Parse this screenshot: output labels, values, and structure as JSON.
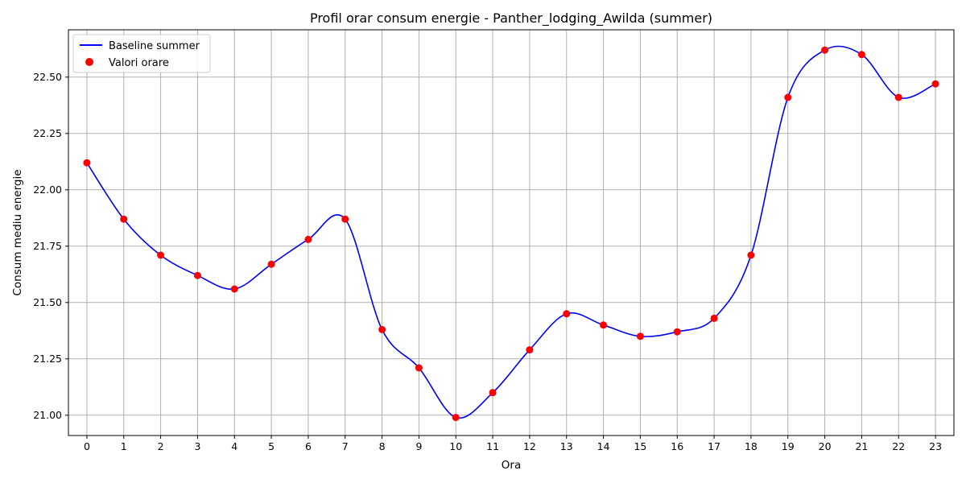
{
  "chart_data": {
    "type": "line",
    "title": "Profil orar consum energie - Panther_lodging_Awilda (summer)",
    "xlabel": "Ora",
    "ylabel": "Consum mediu energie",
    "x": [
      0,
      1,
      2,
      3,
      4,
      5,
      6,
      7,
      8,
      9,
      10,
      11,
      12,
      13,
      14,
      15,
      16,
      17,
      18,
      19,
      20,
      21,
      22,
      23
    ],
    "x_ticks": [
      "0",
      "1",
      "2",
      "3",
      "4",
      "5",
      "6",
      "7",
      "8",
      "9",
      "10",
      "11",
      "12",
      "13",
      "14",
      "15",
      "16",
      "17",
      "18",
      "19",
      "20",
      "21",
      "22",
      "23"
    ],
    "y_ticks": [
      "21.00",
      "21.25",
      "21.50",
      "21.75",
      "22.00",
      "22.25",
      "22.50"
    ],
    "ylim": [
      20.91,
      22.71
    ],
    "xlim": [
      -0.5,
      23.5
    ],
    "grid": true,
    "legend_position": "top-left",
    "series": [
      {
        "name": "Baseline summer",
        "kind": "line",
        "color": "#0000ff",
        "values": [
          22.12,
          21.87,
          21.71,
          21.62,
          21.56,
          21.67,
          21.78,
          21.87,
          21.38,
          21.21,
          20.99,
          21.1,
          21.29,
          21.45,
          21.4,
          21.35,
          21.37,
          21.43,
          21.71,
          22.41,
          22.62,
          22.6,
          22.41,
          22.47
        ]
      },
      {
        "name": "Valori orare",
        "kind": "scatter",
        "color": "#ff0000",
        "values": [
          22.12,
          21.87,
          21.71,
          21.62,
          21.56,
          21.67,
          21.78,
          21.87,
          21.38,
          21.21,
          20.99,
          21.1,
          21.29,
          21.45,
          21.4,
          21.35,
          21.37,
          21.43,
          21.71,
          22.41,
          22.62,
          22.6,
          22.41,
          22.47
        ]
      }
    ]
  }
}
